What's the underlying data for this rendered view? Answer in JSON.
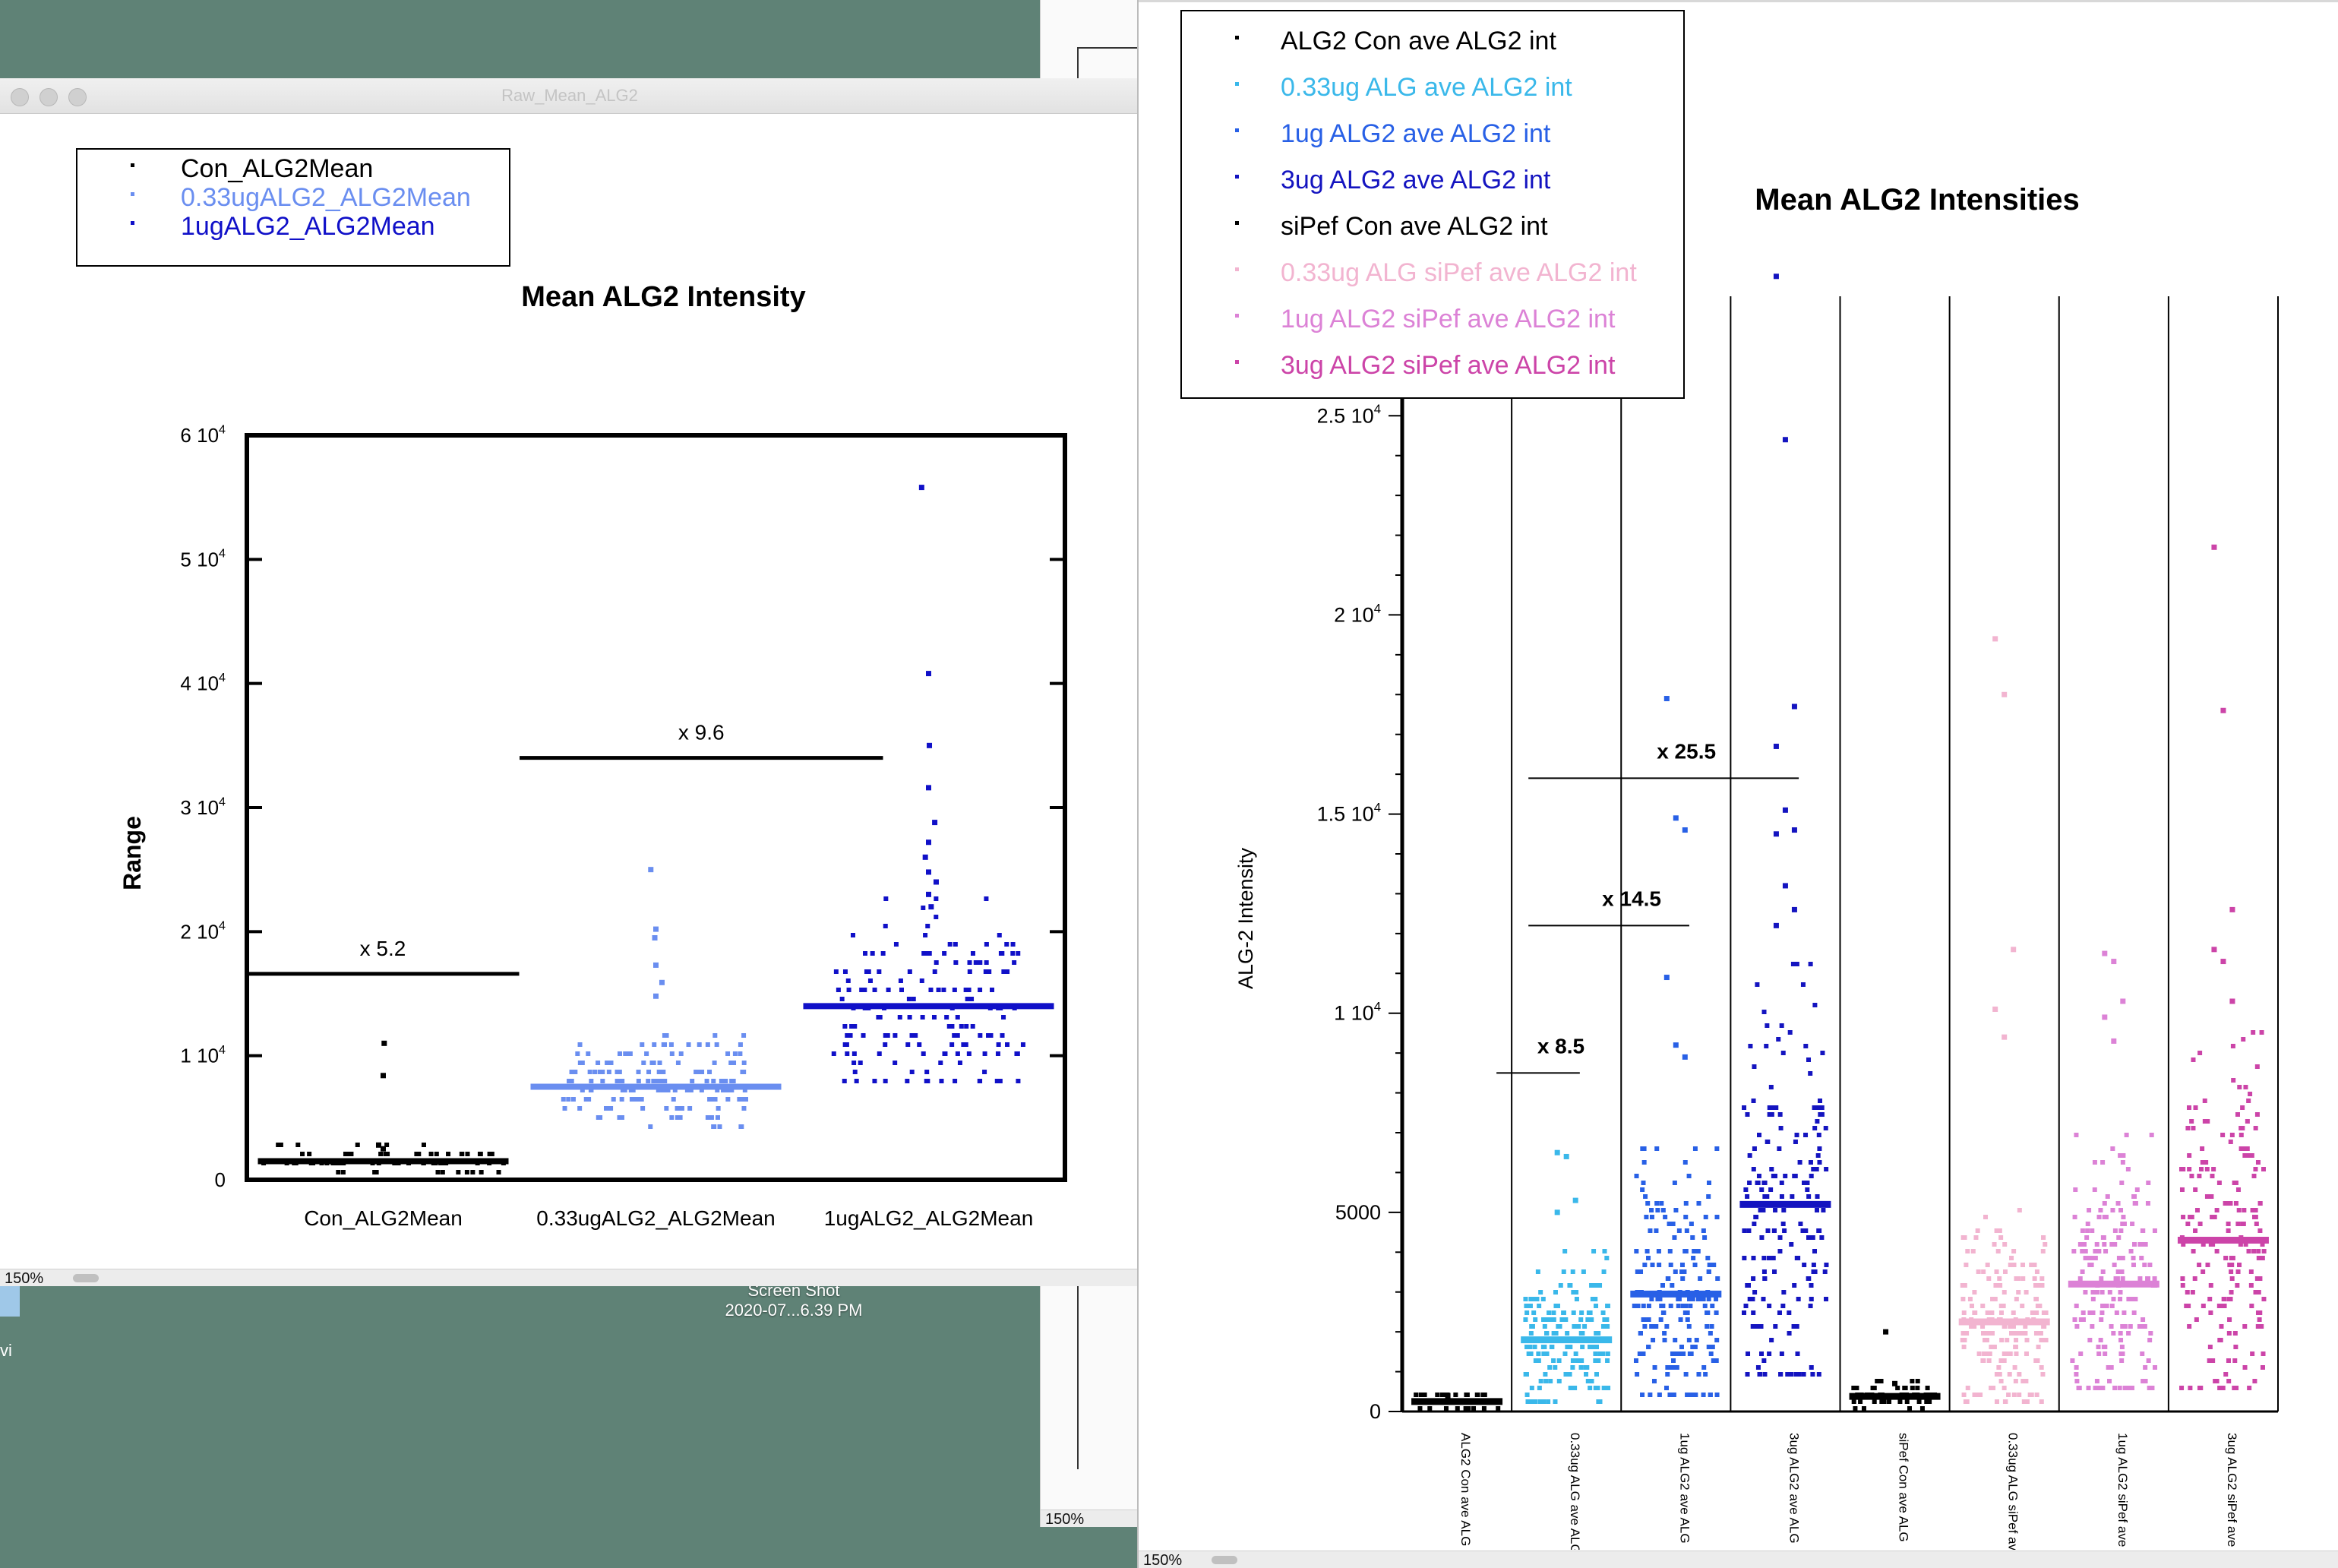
{
  "desktop": {
    "screenshot_label": "Screen Shot",
    "screenshot_date": "2020-07...6.39 PM",
    "edge_letter": "vi"
  },
  "left_window": {
    "title": "Raw_Mean_ALG2",
    "zoom": "150%",
    "legend": [
      {
        "label": "Con_ALG2Mean",
        "color": "#000000"
      },
      {
        "label": "0.33ugALG2_ALG2Mean",
        "color": "#6a8ef0"
      },
      {
        "label": "1ugALG2_ALG2Mean",
        "color": "#1010c8"
      }
    ]
  },
  "back_window": {
    "zoom": "150%"
  },
  "right_window": {
    "zoom": "150%",
    "legend": [
      {
        "label": "ALG2 Con ave ALG2 int",
        "color": "#000000"
      },
      {
        "label": "0.33ug ALG ave ALG2 int",
        "color": "#3ab8ea"
      },
      {
        "label": "1ug ALG2 ave ALG2 int",
        "color": "#2860e6"
      },
      {
        "label": "3ug ALG2 ave ALG2 int",
        "color": "#1414c0"
      },
      {
        "label": "siPef Con ave ALG2 int",
        "color": "#000000"
      },
      {
        "label": "0.33ug ALG siPef ave ALG2 int",
        "color": "#f2b4d0"
      },
      {
        "label": "1ug ALG2 siPef ave ALG2 int",
        "color": "#dc82d6"
      },
      {
        "label": "3ug ALG2 siPef ave ALG2 int",
        "color": "#cc44a8"
      }
    ]
  },
  "chart_data": [
    {
      "type": "scatter",
      "title": "Mean ALG2 Intensity",
      "ylabel": "Range",
      "ylim": [
        0,
        60000
      ],
      "categories": [
        "Con_ALG2Mean",
        "0.33ugALG2_ALG2Mean",
        "1ugALG2_ALG2Mean"
      ],
      "series": [
        {
          "name": "Con_ALG2Mean",
          "color": "#000000",
          "mean": 1500,
          "spread": 800,
          "outliers": [
            11000,
            8400,
            2800,
            2500
          ]
        },
        {
          "name": "0.33ugALG2_ALG2Mean",
          "color": "#6a8ef0",
          "mean": 7500,
          "spread": 2500,
          "outliers": [
            25000,
            20200,
            19500,
            17300,
            15900,
            14800
          ]
        },
        {
          "name": "1ugALG2_ALG2Mean",
          "color": "#1010c8",
          "mean": 14000,
          "spread": 5000,
          "outliers": [
            55800,
            40800,
            35000,
            31600,
            28800,
            27200,
            26000,
            24800,
            24000,
            23000,
            22000
          ]
        }
      ],
      "yticks": [
        {
          "value": 0,
          "label": "0"
        },
        {
          "value": 10000,
          "label": "1 10^4"
        },
        {
          "value": 20000,
          "label": "2 10^4"
        },
        {
          "value": 30000,
          "label": "3 10^4"
        },
        {
          "value": 40000,
          "label": "4 10^4"
        },
        {
          "value": 50000,
          "label": "5 10^4"
        },
        {
          "value": 60000,
          "label": "6 10^4"
        }
      ],
      "annotations": [
        {
          "label": "x 5.2",
          "y": 16600,
          "from": 0,
          "to": 1
        },
        {
          "label": "x 9.6",
          "y": 34000,
          "from": 0.5,
          "to": 2
        }
      ]
    },
    {
      "type": "scatter",
      "title": "Mean ALG2 Intensities",
      "ylabel": "ALG-2 Intensity",
      "ylim": [
        0,
        28000
      ],
      "categories": [
        "ALG2 Con ave ALG",
        "0.33ug ALG ave ALG",
        "1ug ALG2 ave ALG",
        "3ug ALG2 ave ALG",
        "siPef Con ave ALG",
        "0.33ug ALG siPef ave",
        "1ug ALG2 siPef ave A",
        "3ug ALG2 siPef ave A"
      ],
      "series": [
        {
          "name": "ALG2 Con ave ALG2 int",
          "color": "#000000",
          "mean": 250,
          "spread": 150,
          "outliers": [
            400
          ]
        },
        {
          "name": "0.33ug ALG ave ALG2 int",
          "color": "#3ab8ea",
          "mean": 1800,
          "spread": 1100,
          "outliers": [
            6500,
            6400,
            5300,
            5000
          ]
        },
        {
          "name": "1ug ALG2 ave ALG2 int",
          "color": "#2860e6",
          "mean": 2950,
          "spread": 1800,
          "outliers": [
            17900,
            14900,
            14600,
            10900,
            9200,
            8900
          ]
        },
        {
          "name": "3ug ALG2 ave ALG2 int",
          "color": "#1414c0",
          "mean": 5200,
          "spread": 3000,
          "outliers": [
            28500,
            24400,
            17700,
            16700,
            15100,
            14600,
            14500,
            13200,
            12600,
            12200
          ]
        },
        {
          "name": "siPef Con ave ALG2 int",
          "color": "#000000",
          "mean": 380,
          "spread": 200,
          "outliers": [
            2000,
            700
          ]
        },
        {
          "name": "0.33ug ALG siPef ave ALG2 int",
          "color": "#f2b4d0",
          "mean": 2250,
          "spread": 1400,
          "outliers": [
            19400,
            18000,
            11600,
            10100,
            9400
          ]
        },
        {
          "name": "1ug ALG2 siPef ave ALG2 int",
          "color": "#dc82d6",
          "mean": 3200,
          "spread": 1900,
          "outliers": [
            11500,
            11300,
            10300,
            9900,
            9300
          ]
        },
        {
          "name": "3ug ALG2 siPef ave ALG2 int",
          "color": "#cc44a8",
          "mean": 4300,
          "spread": 2600,
          "outliers": [
            21700,
            17600,
            12600,
            11600,
            11300,
            10300
          ]
        }
      ],
      "yticks": [
        {
          "value": 0,
          "label": "0"
        },
        {
          "value": 5000,
          "label": "5000"
        },
        {
          "value": 10000,
          "label": "1 10^4"
        },
        {
          "value": 15000,
          "label": "1.5 10^4"
        },
        {
          "value": 20000,
          "label": "2 10^4"
        },
        {
          "value": 25000,
          "label": "2.5 10^4"
        }
      ],
      "annotations": [
        {
          "label": "x 8.5",
          "y": 8500,
          "from": 0.5,
          "to": 1.4
        },
        {
          "label": "x 14.5",
          "y": 12200,
          "from": 1.0,
          "to": 2.4
        },
        {
          "label": "x 25.5",
          "y": 15900,
          "from": 1.0,
          "to": 3.4
        }
      ]
    }
  ]
}
